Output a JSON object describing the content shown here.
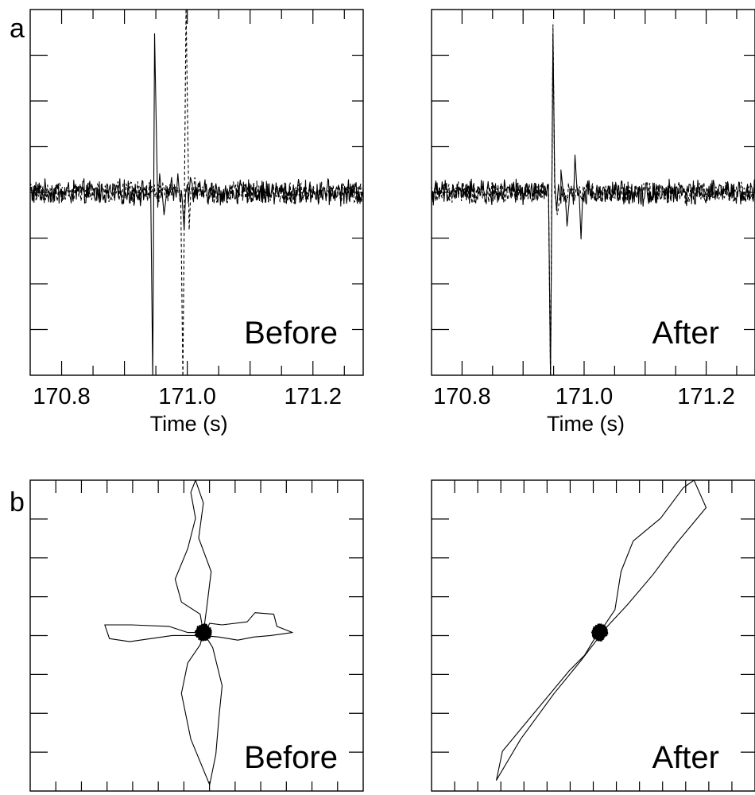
{
  "panel_a_label": "a",
  "panel_b_label": "b",
  "chart_data": [
    {
      "type": "line",
      "panel": "a",
      "label": "Before",
      "xlabel": "Time (s)",
      "xlim": [
        170.75,
        171.28
      ],
      "ylim": [
        -1.0,
        1.0
      ],
      "x_ticks": [
        "170.8",
        "171.0",
        "171.2"
      ],
      "x_tick_values": [
        170.8,
        171.0,
        171.2
      ],
      "series": [
        {
          "style": "solid",
          "noise_amp": 0.06,
          "pulse": {
            "t": [
              170.945,
              170.948,
              170.953,
              170.956,
              170.963,
              170.975,
              170.985,
              170.995,
              171.005
            ],
            "a": [
              -1.0,
              0.85,
              -0.08,
              0.1,
              -0.12,
              0.08,
              0.1,
              -0.2,
              0.08
            ]
          }
        },
        {
          "style": "dashed",
          "noise_amp": 0.05,
          "pulse": {
            "t": [
              170.993,
              170.998,
              171.003,
              171.012
            ],
            "a": [
              -1.0,
              1.0,
              -0.2,
              0.08
            ]
          }
        }
      ]
    },
    {
      "type": "line",
      "panel": "a",
      "label": "After",
      "xlabel": "Time (s)",
      "xlim": [
        170.75,
        171.28
      ],
      "ylim": [
        -1.0,
        1.0
      ],
      "x_ticks": [
        "170.8",
        "171.0",
        "171.2"
      ],
      "x_tick_values": [
        170.8,
        171.0,
        171.2
      ],
      "series": [
        {
          "style": "solid",
          "noise_amp": 0.06,
          "pulse": {
            "t": [
              170.945,
              170.949,
              170.955,
              170.962,
              170.972,
              170.985,
              170.995
            ],
            "a": [
              -1.0,
              0.85,
              -0.1,
              0.12,
              -0.18,
              0.2,
              -0.25
            ]
          }
        },
        {
          "style": "dashed",
          "noise_amp": 0.05,
          "pulse": {
            "t": [
              170.945,
              170.949,
              170.956
            ],
            "a": [
              -1.0,
              0.9,
              -0.12
            ]
          }
        }
      ]
    },
    {
      "type": "scatter",
      "panel": "b",
      "label": "Before",
      "xlim": [
        -1.0,
        1.0
      ],
      "ylim": [
        -1.0,
        1.0
      ],
      "x_minor_ticks": 12,
      "y_minor_ticks": 7,
      "loops": [
        [
          [
            0.01,
            0.0
          ],
          [
            0.04,
            0.06
          ],
          [
            0.12,
            0.05
          ],
          [
            0.28,
            0.07
          ],
          [
            0.33,
            0.13
          ],
          [
            0.45,
            0.12
          ],
          [
            0.47,
            0.04
          ],
          [
            0.57,
            0.0
          ],
          [
            0.43,
            -0.02
          ],
          [
            0.32,
            -0.03
          ],
          [
            0.22,
            -0.05
          ],
          [
            0.1,
            -0.03
          ],
          [
            0.0,
            -0.02
          ],
          [
            -0.2,
            -0.02
          ],
          [
            -0.47,
            -0.06
          ],
          [
            -0.6,
            -0.04
          ],
          [
            -0.63,
            0.05
          ],
          [
            -0.46,
            0.05
          ],
          [
            -0.22,
            0.04
          ],
          [
            -0.1,
            0.0
          ],
          [
            0.01,
            0.0
          ]
        ],
        [
          [
            0.0,
            0.0
          ],
          [
            -0.02,
            0.12
          ],
          [
            -0.14,
            0.2
          ],
          [
            -0.18,
            0.35
          ],
          [
            -0.1,
            0.55
          ],
          [
            -0.05,
            0.75
          ],
          [
            -0.08,
            0.92
          ],
          [
            -0.05,
            1.0
          ],
          [
            0.0,
            0.85
          ],
          [
            -0.03,
            0.62
          ],
          [
            0.05,
            0.4
          ],
          [
            0.02,
            0.15
          ],
          [
            0.0,
            0.0
          ],
          [
            0.06,
            -0.1
          ],
          [
            0.12,
            -0.35
          ],
          [
            0.1,
            -0.55
          ],
          [
            0.08,
            -0.8
          ],
          [
            0.04,
            -1.0
          ],
          [
            -0.08,
            -0.7
          ],
          [
            -0.14,
            -0.4
          ],
          [
            -0.1,
            -0.2
          ],
          [
            -0.02,
            -0.08
          ],
          [
            0.0,
            0.0
          ]
        ]
      ]
    },
    {
      "type": "scatter",
      "panel": "b",
      "label": "After",
      "xlim": [
        -1.0,
        1.0
      ],
      "ylim": [
        -1.0,
        1.0
      ],
      "x_minor_ticks": 13,
      "y_minor_ticks": 7,
      "loops": [
        [
          [
            0.0,
            0.0
          ],
          [
            0.1,
            0.15
          ],
          [
            0.14,
            0.4
          ],
          [
            0.22,
            0.6
          ],
          [
            0.4,
            0.75
          ],
          [
            0.55,
            0.95
          ],
          [
            0.62,
            1.0
          ],
          [
            0.7,
            0.82
          ],
          [
            0.5,
            0.58
          ],
          [
            0.35,
            0.38
          ],
          [
            0.18,
            0.18
          ],
          [
            0.05,
            0.04
          ],
          [
            -0.02,
            -0.05
          ],
          [
            -0.12,
            -0.18
          ],
          [
            -0.3,
            -0.4
          ],
          [
            -0.52,
            -0.7
          ],
          [
            -0.68,
            -0.97
          ],
          [
            -0.64,
            -0.78
          ],
          [
            -0.45,
            -0.55
          ],
          [
            -0.2,
            -0.25
          ],
          [
            -0.1,
            -0.15
          ],
          [
            -0.04,
            -0.05
          ],
          [
            0.0,
            0.0
          ]
        ]
      ]
    }
  ]
}
